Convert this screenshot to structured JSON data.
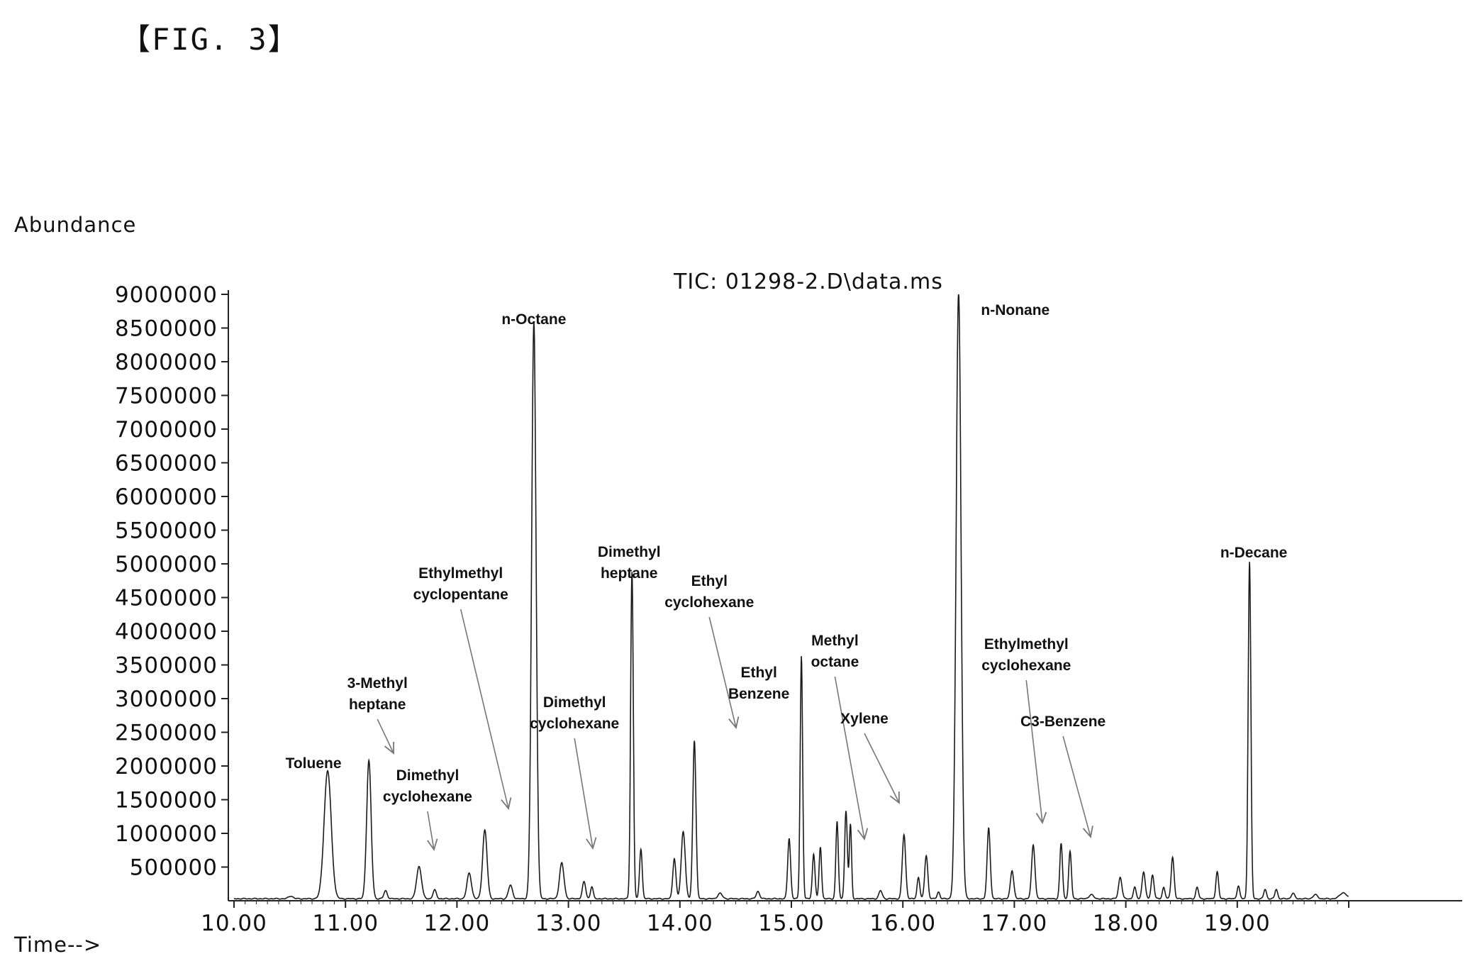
{
  "figure_label": "【FIG. 3】",
  "chart_data": {
    "type": "line",
    "title": "TIC: 01298-2.D\\data.ms",
    "ylabel": "Abundance",
    "xlabel": "Time-->",
    "xlim": [
      10.0,
      20.0
    ],
    "ylim": [
      0,
      9000000
    ],
    "x_ticks": [
      {
        "v": 10,
        "label": "10.00"
      },
      {
        "v": 11,
        "label": "11.00"
      },
      {
        "v": 12,
        "label": "12.00"
      },
      {
        "v": 13,
        "label": "13.00"
      },
      {
        "v": 14,
        "label": "14.00"
      },
      {
        "v": 15,
        "label": "15.00"
      },
      {
        "v": 16,
        "label": "16.00"
      },
      {
        "v": 17,
        "label": "17.00"
      },
      {
        "v": 18,
        "label": "18.00"
      },
      {
        "v": 19,
        "label": "19.00"
      }
    ],
    "y_ticks": [
      {
        "v": 500000,
        "label": "500000"
      },
      {
        "v": 1000000,
        "label": "1000000"
      },
      {
        "v": 1500000,
        "label": "1500000"
      },
      {
        "v": 2000000,
        "label": "2000000"
      },
      {
        "v": 2500000,
        "label": "2500000"
      },
      {
        "v": 3000000,
        "label": "3000000"
      },
      {
        "v": 3500000,
        "label": "3500000"
      },
      {
        "v": 4000000,
        "label": "4000000"
      },
      {
        "v": 4500000,
        "label": "4500000"
      },
      {
        "v": 5000000,
        "label": "5000000"
      },
      {
        "v": 5500000,
        "label": "5500000"
      },
      {
        "v": 6000000,
        "label": "6000000"
      },
      {
        "v": 6500000,
        "label": "6500000"
      },
      {
        "v": 7000000,
        "label": "7000000"
      },
      {
        "v": 7500000,
        "label": "7500000"
      },
      {
        "v": 8000000,
        "label": "8000000"
      },
      {
        "v": 8500000,
        "label": "8500000"
      },
      {
        "v": 9000000,
        "label": "9000000"
      }
    ],
    "baseline": 30000,
    "peaks": [
      {
        "t": 10.51,
        "h": 40000,
        "w": 0.02
      },
      {
        "t": 10.84,
        "h": 1900000,
        "w": 0.032
      },
      {
        "t": 11.21,
        "h": 2050000,
        "w": 0.02
      },
      {
        "t": 11.36,
        "h": 120000,
        "w": 0.015
      },
      {
        "t": 11.66,
        "h": 480000,
        "w": 0.022
      },
      {
        "t": 11.8,
        "h": 130000,
        "w": 0.015
      },
      {
        "t": 12.11,
        "h": 380000,
        "w": 0.02
      },
      {
        "t": 12.25,
        "h": 1020000,
        "w": 0.02
      },
      {
        "t": 12.48,
        "h": 200000,
        "w": 0.018
      },
      {
        "t": 12.69,
        "h": 8550000,
        "w": 0.02
      },
      {
        "t": 12.94,
        "h": 530000,
        "w": 0.02
      },
      {
        "t": 13.14,
        "h": 250000,
        "w": 0.015
      },
      {
        "t": 13.21,
        "h": 180000,
        "w": 0.012
      },
      {
        "t": 13.57,
        "h": 4850000,
        "w": 0.012
      },
      {
        "t": 13.65,
        "h": 740000,
        "w": 0.012
      },
      {
        "t": 13.95,
        "h": 600000,
        "w": 0.014
      },
      {
        "t": 14.03,
        "h": 1000000,
        "w": 0.018
      },
      {
        "t": 14.13,
        "h": 2350000,
        "w": 0.014
      },
      {
        "t": 14.36,
        "h": 80000,
        "w": 0.02
      },
      {
        "t": 14.7,
        "h": 110000,
        "w": 0.015
      },
      {
        "t": 14.98,
        "h": 900000,
        "w": 0.013
      },
      {
        "t": 15.09,
        "h": 3600000,
        "w": 0.011
      },
      {
        "t": 15.2,
        "h": 660000,
        "w": 0.012
      },
      {
        "t": 15.26,
        "h": 770000,
        "w": 0.011
      },
      {
        "t": 15.41,
        "h": 1150000,
        "w": 0.011
      },
      {
        "t": 15.49,
        "h": 1300000,
        "w": 0.012
      },
      {
        "t": 15.53,
        "h": 1100000,
        "w": 0.01
      },
      {
        "t": 15.8,
        "h": 120000,
        "w": 0.015
      },
      {
        "t": 16.01,
        "h": 950000,
        "w": 0.015
      },
      {
        "t": 16.14,
        "h": 320000,
        "w": 0.012
      },
      {
        "t": 16.21,
        "h": 640000,
        "w": 0.014
      },
      {
        "t": 16.32,
        "h": 100000,
        "w": 0.012
      },
      {
        "t": 16.5,
        "h": 9000000,
        "w": 0.022
      },
      {
        "t": 16.77,
        "h": 1050000,
        "w": 0.014
      },
      {
        "t": 16.98,
        "h": 420000,
        "w": 0.015
      },
      {
        "t": 17.17,
        "h": 800000,
        "w": 0.015
      },
      {
        "t": 17.42,
        "h": 820000,
        "w": 0.012
      },
      {
        "t": 17.5,
        "h": 700000,
        "w": 0.012
      },
      {
        "t": 17.69,
        "h": 60000,
        "w": 0.02
      },
      {
        "t": 17.95,
        "h": 320000,
        "w": 0.015
      },
      {
        "t": 18.08,
        "h": 170000,
        "w": 0.012
      },
      {
        "t": 18.16,
        "h": 400000,
        "w": 0.014
      },
      {
        "t": 18.24,
        "h": 350000,
        "w": 0.013
      },
      {
        "t": 18.34,
        "h": 170000,
        "w": 0.012
      },
      {
        "t": 18.42,
        "h": 620000,
        "w": 0.013
      },
      {
        "t": 18.64,
        "h": 170000,
        "w": 0.012
      },
      {
        "t": 18.82,
        "h": 400000,
        "w": 0.012
      },
      {
        "t": 19.01,
        "h": 190000,
        "w": 0.012
      },
      {
        "t": 19.11,
        "h": 5000000,
        "w": 0.012
      },
      {
        "t": 19.25,
        "h": 140000,
        "w": 0.012
      },
      {
        "t": 19.35,
        "h": 140000,
        "w": 0.012
      },
      {
        "t": 19.5,
        "h": 80000,
        "w": 0.015
      },
      {
        "t": 19.7,
        "h": 60000,
        "w": 0.02
      },
      {
        "t": 19.95,
        "h": 90000,
        "w": 0.03
      }
    ],
    "annotations": [
      {
        "text": "Toluene",
        "t": 10.84,
        "y": 2000000
      },
      {
        "text": "3-Methyl\nheptane",
        "t": 11.21,
        "y": 2050000
      },
      {
        "text": "Dimethyl\ncyclohexane",
        "t": 11.66,
        "y": 480000
      },
      {
        "text": "Ethylmethyl\ncyclopentane",
        "t": 12.25,
        "y": 1020000
      },
      {
        "text": "n-Octane",
        "t": 12.69,
        "y": 8550000
      },
      {
        "text": "Dimethyl\ncyclohexane",
        "t": 12.94,
        "y": 530000
      },
      {
        "text": "Dimethyl\nheptane",
        "t": 13.57,
        "y": 4850000
      },
      {
        "text": "Ethyl\ncyclohexane",
        "t": 14.13,
        "y": 2350000
      },
      {
        "text": "Ethyl\nBenzene",
        "t": 15.09,
        "y": 3600000
      },
      {
        "text": "Methyl\noctane",
        "t": 15.2,
        "y": 660000
      },
      {
        "text": "Xylene",
        "t": 15.49,
        "y": 1300000
      },
      {
        "text": "n-Nonane",
        "t": 16.5,
        "y": 9000000
      },
      {
        "text": "Ethylmethyl\ncyclohexane",
        "t": 16.77,
        "y": 1050000
      },
      {
        "text": "C3-Benzene",
        "t": 17.17,
        "y": 800000
      },
      {
        "text": "n-Decane",
        "t": 19.11,
        "y": 5000000
      }
    ]
  }
}
